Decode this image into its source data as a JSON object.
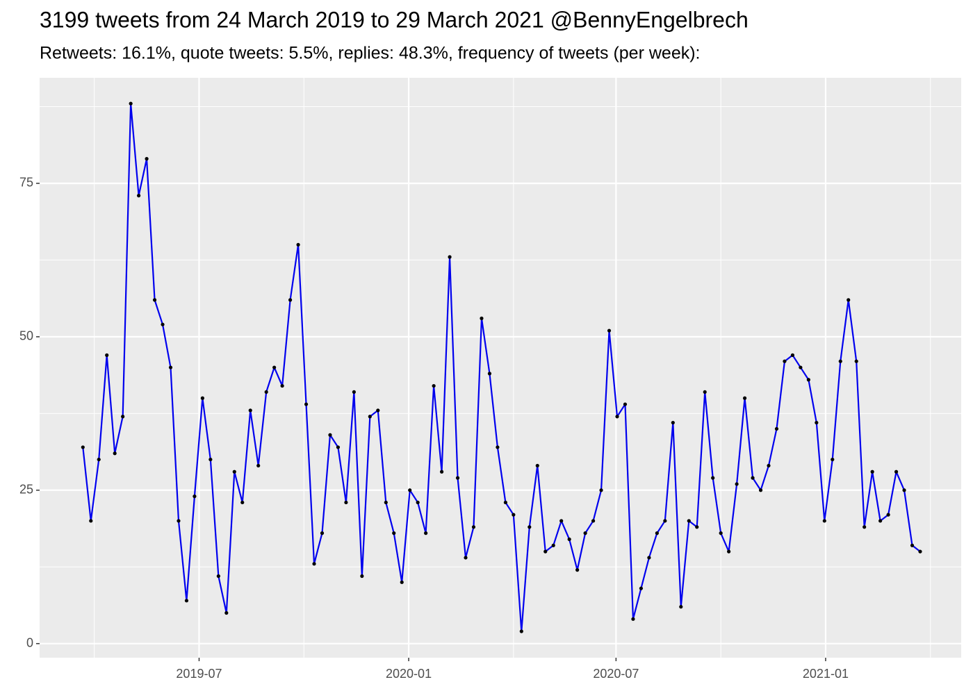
{
  "chart_data": {
    "type": "line",
    "title": "3199 tweets from 24 March 2019 to 29 March 2021 @BennyEngelbrech",
    "subtitle": "Retweets: 16.1%, quote tweets: 5.5%, replies: 48.3%, frequency of tweets (per week):",
    "x": [
      "2019-03-21",
      "2019-03-28",
      "2019-04-04",
      "2019-04-11",
      "2019-04-18",
      "2019-04-25",
      "2019-05-02",
      "2019-05-09",
      "2019-05-16",
      "2019-05-23",
      "2019-05-30",
      "2019-06-06",
      "2019-06-13",
      "2019-06-20",
      "2019-06-27",
      "2019-07-04",
      "2019-07-11",
      "2019-07-18",
      "2019-07-25",
      "2019-08-01",
      "2019-08-08",
      "2019-08-15",
      "2019-08-22",
      "2019-08-29",
      "2019-09-05",
      "2019-09-12",
      "2019-09-19",
      "2019-09-26",
      "2019-10-03",
      "2019-10-10",
      "2019-10-17",
      "2019-10-24",
      "2019-10-31",
      "2019-11-07",
      "2019-11-14",
      "2019-11-21",
      "2019-11-28",
      "2019-12-05",
      "2019-12-12",
      "2019-12-19",
      "2019-12-26",
      "2020-01-02",
      "2020-01-09",
      "2020-01-16",
      "2020-01-23",
      "2020-01-30",
      "2020-02-06",
      "2020-02-13",
      "2020-02-20",
      "2020-02-27",
      "2020-03-05",
      "2020-03-12",
      "2020-03-19",
      "2020-03-26",
      "2020-04-02",
      "2020-04-09",
      "2020-04-16",
      "2020-04-23",
      "2020-04-30",
      "2020-05-07",
      "2020-05-14",
      "2020-05-21",
      "2020-05-28",
      "2020-06-04",
      "2020-06-11",
      "2020-06-18",
      "2020-06-25",
      "2020-07-02",
      "2020-07-09",
      "2020-07-16",
      "2020-07-23",
      "2020-07-30",
      "2020-08-06",
      "2020-08-13",
      "2020-08-20",
      "2020-08-27",
      "2020-09-03",
      "2020-09-10",
      "2020-09-17",
      "2020-09-24",
      "2020-10-01",
      "2020-10-08",
      "2020-10-15",
      "2020-10-22",
      "2020-10-29",
      "2020-11-05",
      "2020-11-12",
      "2020-11-19",
      "2020-11-26",
      "2020-12-03",
      "2020-12-10",
      "2020-12-17",
      "2020-12-24",
      "2020-12-31",
      "2021-01-07",
      "2021-01-14",
      "2021-01-21",
      "2021-01-28",
      "2021-02-04",
      "2021-02-11",
      "2021-02-18",
      "2021-02-25",
      "2021-03-04",
      "2021-03-11",
      "2021-03-18",
      "2021-03-25"
    ],
    "values": [
      32,
      20,
      30,
      47,
      31,
      37,
      88,
      73,
      79,
      56,
      52,
      45,
      20,
      7,
      24,
      40,
      30,
      11,
      5,
      28,
      23,
      38,
      29,
      41,
      45,
      42,
      56,
      65,
      39,
      13,
      18,
      34,
      32,
      23,
      41,
      11,
      37,
      38,
      23,
      18,
      10,
      25,
      23,
      18,
      42,
      28,
      63,
      27,
      14,
      19,
      53,
      44,
      32,
      23,
      21,
      2,
      19,
      29,
      15,
      16,
      20,
      17,
      12,
      18,
      20,
      25,
      51,
      37,
      39,
      4,
      9,
      14,
      18,
      20,
      36,
      6,
      20,
      19,
      41,
      27,
      18,
      15,
      26,
      40,
      27,
      25,
      29,
      35,
      46,
      47,
      45,
      43,
      36,
      20,
      30,
      46,
      56,
      46,
      19,
      28,
      20,
      21,
      28,
      25,
      16,
      15
    ],
    "color": "#0000ee",
    "point_color": "#000000",
    "xlim": [
      "2019-02-11",
      "2021-04-30"
    ],
    "xticks": [
      "2019-07",
      "2020-01",
      "2020-07",
      "2021-01"
    ],
    "ylim": [
      -2.3,
      92.2
    ],
    "yticks": [
      0,
      25,
      50,
      75
    ],
    "grid": true
  }
}
